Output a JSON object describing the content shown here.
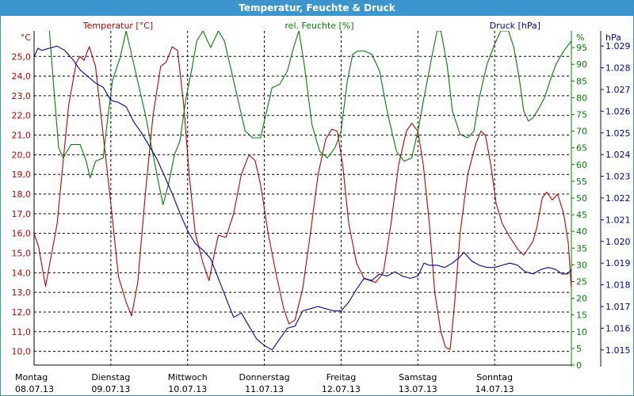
{
  "window": {
    "title": "Temperatur, Feuchte & Druck"
  },
  "colors": {
    "temperature": "#c00000",
    "humidity": "#008000",
    "pressure": "#0000aa",
    "grid": "#000000",
    "titlebar": "#3d95cd"
  },
  "chart_data": {
    "type": "line",
    "title": "Temperatur, Feuchte & Druck",
    "grid": true,
    "x_labels": [
      {
        "day": "Montag",
        "date": "08.07.13"
      },
      {
        "day": "Dienstag",
        "date": "09.07.13"
      },
      {
        "day": "Mittwoch",
        "date": "10.07.13"
      },
      {
        "day": "Donnerstag",
        "date": "11.07.13"
      },
      {
        "day": "Freitag",
        "date": "12.07.13"
      },
      {
        "day": "Samstag",
        "date": "13.07.13"
      },
      {
        "day": "Sonntag",
        "date": "14.07.13"
      }
    ],
    "axes": {
      "temperature": {
        "label": "Temperatur [°C]",
        "unit": "°C",
        "range": [
          9.3,
          26.3
        ],
        "ticks": [
          "10,0",
          "11,0",
          "12,0",
          "13,0",
          "14,0",
          "15,0",
          "16,0",
          "17,0",
          "18,0",
          "19,0",
          "20,0",
          "21,0",
          "22,0",
          "23,0",
          "24,0",
          "25,0"
        ]
      },
      "humidity": {
        "label": "rel. Feuchte [%]",
        "unit": "%",
        "range": [
          0,
          100
        ],
        "ticks": [
          "0",
          "5",
          "10",
          "15",
          "20",
          "25",
          "30",
          "35",
          "40",
          "45",
          "50",
          "55",
          "60",
          "65",
          "70",
          "75",
          "80",
          "85",
          "90",
          "95"
        ]
      },
      "pressure": {
        "label": "Druck [hPa]",
        "unit": "hPa",
        "range": [
          1.0143,
          1.0297
        ],
        "ticks": [
          "1.015",
          "1.016",
          "1.017",
          "1.018",
          "1.019",
          "1.020",
          "1.021",
          "1.022",
          "1.023",
          "1.024",
          "1.025",
          "1.026",
          "1.027",
          "1.028",
          "1.029"
        ]
      }
    },
    "x_range": [
      0,
      7
    ],
    "series": [
      {
        "name": "Temperatur [°C]",
        "axis": "temperature",
        "points": [
          [
            0,
            16
          ],
          [
            0.06,
            15.3
          ],
          [
            0.15,
            13.3
          ],
          [
            0.3,
            16.5
          ],
          [
            0.45,
            22.5
          ],
          [
            0.55,
            24.7
          ],
          [
            0.6,
            25
          ],
          [
            0.65,
            24.8
          ],
          [
            0.72,
            25.5
          ],
          [
            0.8,
            24.5
          ],
          [
            0.9,
            21
          ],
          [
            1.0,
            17.5
          ],
          [
            1.1,
            13.8
          ],
          [
            1.2,
            12.5
          ],
          [
            1.27,
            11.8
          ],
          [
            1.35,
            13.5
          ],
          [
            1.45,
            18
          ],
          [
            1.55,
            22
          ],
          [
            1.65,
            24.5
          ],
          [
            1.72,
            24.7
          ],
          [
            1.8,
            25.5
          ],
          [
            1.87,
            25.3
          ],
          [
            1.95,
            22.5
          ],
          [
            2.02,
            19
          ],
          [
            2.1,
            16
          ],
          [
            2.2,
            14.5
          ],
          [
            2.28,
            13.6
          ],
          [
            2.35,
            15
          ],
          [
            2.4,
            15.9
          ],
          [
            2.5,
            15.8
          ],
          [
            2.6,
            17
          ],
          [
            2.7,
            19
          ],
          [
            2.8,
            20
          ],
          [
            2.88,
            19.7
          ],
          [
            2.95,
            18.5
          ],
          [
            3.05,
            16
          ],
          [
            3.15,
            14
          ],
          [
            3.25,
            12.2
          ],
          [
            3.32,
            11.4
          ],
          [
            3.4,
            11.6
          ],
          [
            3.5,
            13.2
          ],
          [
            3.6,
            16
          ],
          [
            3.7,
            19
          ],
          [
            3.8,
            20.8
          ],
          [
            3.88,
            21.3
          ],
          [
            3.95,
            21.2
          ],
          [
            4.02,
            19.5
          ],
          [
            4.1,
            16.5
          ],
          [
            4.2,
            14.5
          ],
          [
            4.3,
            13.7
          ],
          [
            4.38,
            13.6
          ],
          [
            4.45,
            13.5
          ],
          [
            4.55,
            14
          ],
          [
            4.65,
            16.5
          ],
          [
            4.75,
            19.5
          ],
          [
            4.85,
            21.2
          ],
          [
            4.92,
            21.6
          ],
          [
            5.0,
            21.2
          ],
          [
            5.07,
            19.5
          ],
          [
            5.15,
            16.5
          ],
          [
            5.22,
            13
          ],
          [
            5.3,
            11
          ],
          [
            5.36,
            10.2
          ],
          [
            5.42,
            10.1
          ],
          [
            5.48,
            12.5
          ],
          [
            5.55,
            16
          ],
          [
            5.65,
            19
          ],
          [
            5.75,
            20.5
          ],
          [
            5.82,
            21.2
          ],
          [
            5.88,
            21
          ],
          [
            5.95,
            19.5
          ],
          [
            6.02,
            17.5
          ],
          [
            6.1,
            16.5
          ],
          [
            6.2,
            15.8
          ],
          [
            6.3,
            15.2
          ],
          [
            6.38,
            14.9
          ],
          [
            6.45,
            15.3
          ],
          [
            6.5,
            15.6
          ],
          [
            6.55,
            16.3
          ],
          [
            6.62,
            17.8
          ],
          [
            6.68,
            18.1
          ],
          [
            6.75,
            17.7
          ],
          [
            6.82,
            18
          ],
          [
            6.9,
            17
          ],
          [
            6.96,
            15.5
          ],
          [
            7.0,
            13.2
          ]
        ]
      },
      {
        "name": "rel. Feuchte [%]",
        "axis": "humidity",
        "points": [
          [
            0.2,
            100
          ],
          [
            0.25,
            85
          ],
          [
            0.32,
            65
          ],
          [
            0.38,
            62
          ],
          [
            0.48,
            66
          ],
          [
            0.6,
            66
          ],
          [
            0.68,
            61
          ],
          [
            0.73,
            56
          ],
          [
            0.8,
            61
          ],
          [
            0.9,
            62
          ],
          [
            0.95,
            72
          ],
          [
            1.02,
            85
          ],
          [
            1.12,
            92
          ],
          [
            1.2,
            100
          ],
          [
            1.3,
            90
          ],
          [
            1.45,
            75
          ],
          [
            1.6,
            57
          ],
          [
            1.68,
            48
          ],
          [
            1.75,
            54
          ],
          [
            1.83,
            63
          ],
          [
            1.9,
            67
          ],
          [
            1.98,
            80
          ],
          [
            2.05,
            88
          ],
          [
            2.12,
            97
          ],
          [
            2.2,
            100
          ],
          [
            2.3,
            95
          ],
          [
            2.4,
            100
          ],
          [
            2.48,
            97
          ],
          [
            2.55,
            90
          ],
          [
            2.65,
            80
          ],
          [
            2.75,
            70
          ],
          [
            2.85,
            68
          ],
          [
            2.95,
            68
          ],
          [
            3.02,
            75
          ],
          [
            3.1,
            83
          ],
          [
            3.2,
            84
          ],
          [
            3.3,
            88
          ],
          [
            3.38,
            95
          ],
          [
            3.45,
            100
          ],
          [
            3.52,
            90
          ],
          [
            3.62,
            72
          ],
          [
            3.72,
            64
          ],
          [
            3.82,
            62
          ],
          [
            3.92,
            65
          ],
          [
            4.0,
            70
          ],
          [
            4.08,
            85
          ],
          [
            4.15,
            93
          ],
          [
            4.22,
            94
          ],
          [
            4.3,
            94
          ],
          [
            4.4,
            93
          ],
          [
            4.5,
            88
          ],
          [
            4.6,
            76
          ],
          [
            4.72,
            64
          ],
          [
            4.82,
            61
          ],
          [
            4.92,
            62
          ],
          [
            5.0,
            70
          ],
          [
            5.08,
            80
          ],
          [
            5.18,
            92
          ],
          [
            5.25,
            100
          ],
          [
            5.3,
            100
          ],
          [
            5.38,
            90
          ],
          [
            5.45,
            76
          ],
          [
            5.55,
            69
          ],
          [
            5.65,
            68
          ],
          [
            5.73,
            70
          ],
          [
            5.8,
            80
          ],
          [
            5.9,
            90
          ],
          [
            6.0,
            96
          ],
          [
            6.08,
            100
          ],
          [
            6.18,
            100
          ],
          [
            6.25,
            95
          ],
          [
            6.32,
            86
          ],
          [
            6.38,
            76
          ],
          [
            6.44,
            73
          ],
          [
            6.5,
            74
          ],
          [
            6.58,
            77
          ],
          [
            6.65,
            80
          ],
          [
            6.72,
            85
          ],
          [
            6.8,
            90
          ],
          [
            6.9,
            94
          ],
          [
            7.0,
            97
          ]
        ]
      },
      {
        "name": "Druck [hPa]",
        "axis": "pressure",
        "points": [
          [
            0,
            1.0285
          ],
          [
            0.05,
            1.0289
          ],
          [
            0.1,
            1.0288
          ],
          [
            0.2,
            1.0289
          ],
          [
            0.3,
            1.029
          ],
          [
            0.4,
            1.0288
          ],
          [
            0.5,
            1.0284
          ],
          [
            0.6,
            1.0279
          ],
          [
            0.7,
            1.0276
          ],
          [
            0.8,
            1.0273
          ],
          [
            0.9,
            1.0271
          ],
          [
            1.0,
            1.0265
          ],
          [
            1.1,
            1.0264
          ],
          [
            1.2,
            1.0262
          ],
          [
            1.3,
            1.0255
          ],
          [
            1.4,
            1.025
          ],
          [
            1.5,
            1.0244
          ],
          [
            1.6,
            1.0238
          ],
          [
            1.7,
            1.023
          ],
          [
            1.8,
            1.0222
          ],
          [
            1.9,
            1.0213
          ],
          [
            2.0,
            1.0205
          ],
          [
            2.1,
            1.0199
          ],
          [
            2.2,
            1.0196
          ],
          [
            2.3,
            1.0192
          ],
          [
            2.4,
            1.0183
          ],
          [
            2.5,
            1.0174
          ],
          [
            2.6,
            1.0165
          ],
          [
            2.7,
            1.0167
          ],
          [
            2.8,
            1.0161
          ],
          [
            2.9,
            1.0155
          ],
          [
            3.0,
            1.0152
          ],
          [
            3.1,
            1.015
          ],
          [
            3.2,
            1.0155
          ],
          [
            3.3,
            1.016
          ],
          [
            3.4,
            1.0161
          ],
          [
            3.5,
            1.0168
          ],
          [
            3.6,
            1.0169
          ],
          [
            3.7,
            1.017
          ],
          [
            3.8,
            1.0169
          ],
          [
            3.9,
            1.0168
          ],
          [
            4.0,
            1.0168
          ],
          [
            4.1,
            1.0172
          ],
          [
            4.2,
            1.0178
          ],
          [
            4.3,
            1.0183
          ],
          [
            4.4,
            1.0182
          ],
          [
            4.5,
            1.0185
          ],
          [
            4.6,
            1.0184
          ],
          [
            4.7,
            1.0186
          ],
          [
            4.8,
            1.0184
          ],
          [
            4.9,
            1.0183
          ],
          [
            5.0,
            1.0184
          ],
          [
            5.08,
            1.019
          ],
          [
            5.15,
            1.0189
          ],
          [
            5.25,
            1.0189
          ],
          [
            5.35,
            1.0188
          ],
          [
            5.45,
            1.019
          ],
          [
            5.55,
            1.0193
          ],
          [
            5.6,
            1.0195
          ],
          [
            5.7,
            1.0191
          ],
          [
            5.8,
            1.0189
          ],
          [
            5.9,
            1.0188
          ],
          [
            6.0,
            1.0188
          ],
          [
            6.1,
            1.0189
          ],
          [
            6.2,
            1.019
          ],
          [
            6.3,
            1.0189
          ],
          [
            6.4,
            1.0186
          ],
          [
            6.5,
            1.0185
          ],
          [
            6.6,
            1.0187
          ],
          [
            6.7,
            1.0188
          ],
          [
            6.8,
            1.0187
          ],
          [
            6.88,
            1.0185
          ],
          [
            6.95,
            1.0185
          ],
          [
            7.0,
            1.0187
          ]
        ]
      }
    ]
  }
}
